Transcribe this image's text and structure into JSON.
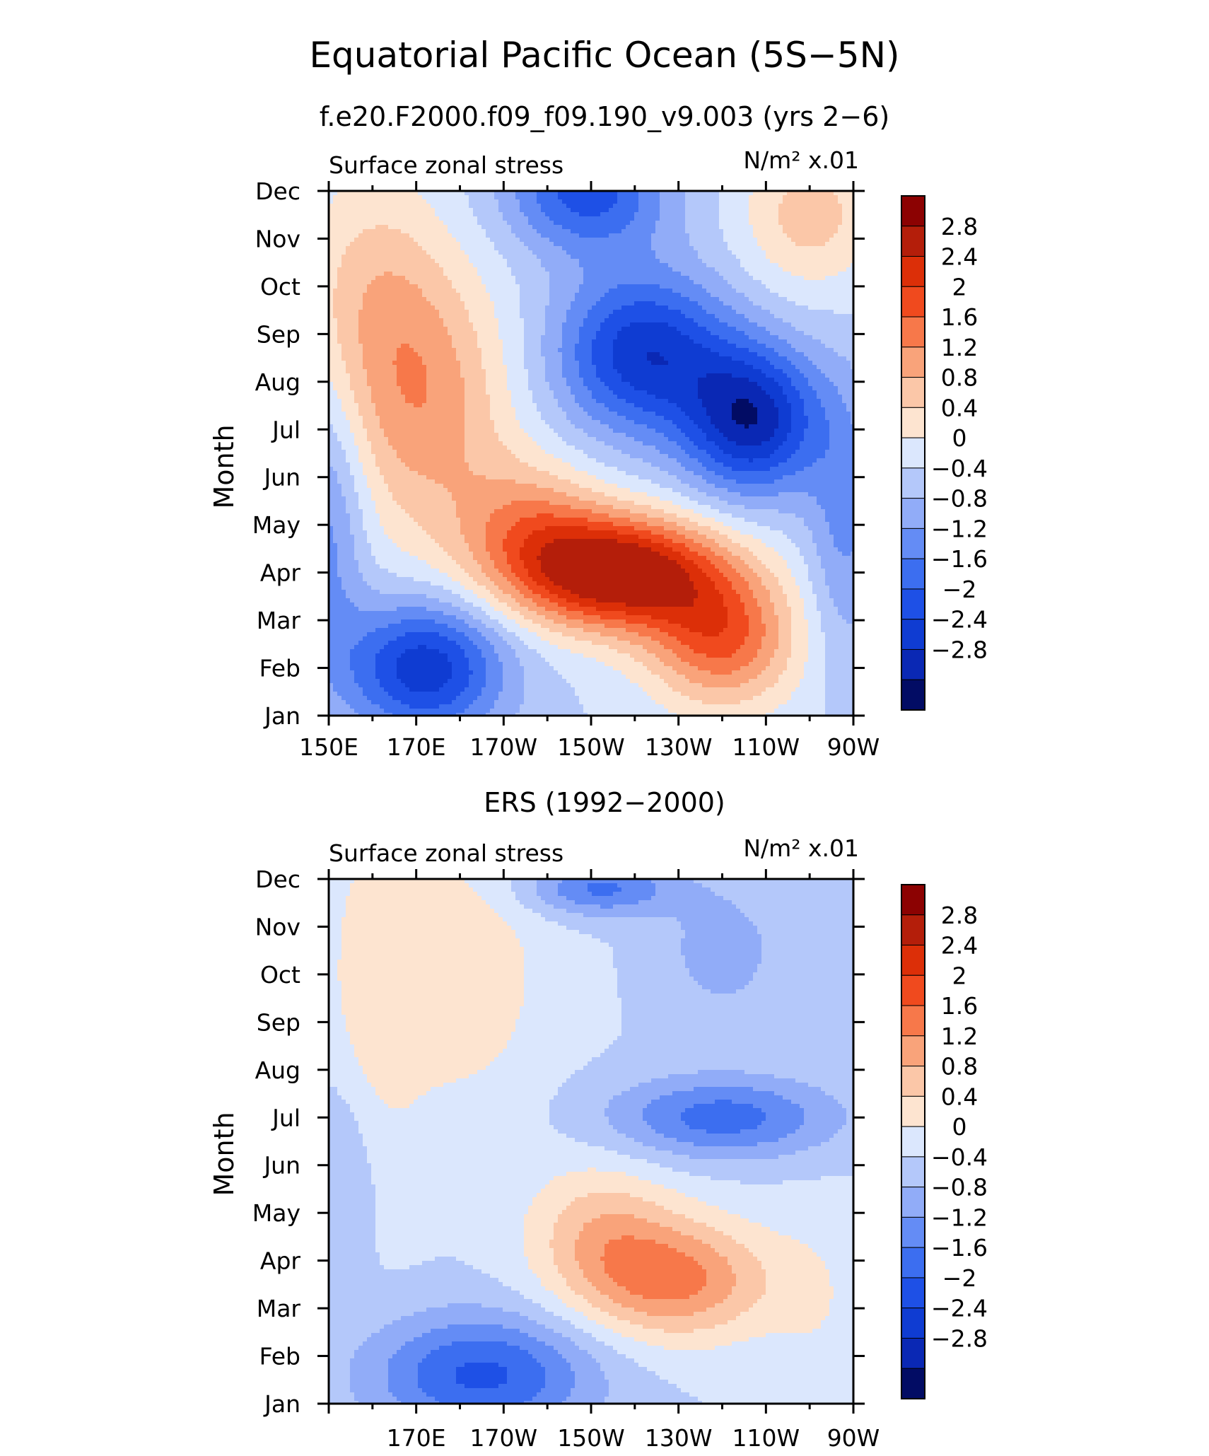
{
  "title": "Equatorial Pacific Ocean (5S−5N)",
  "chart_data": [
    {
      "type": "heatmap",
      "panel_title": "f.e20.F2000.f09_f09.190_v9.003 (yrs 2−6)",
      "left_label": "Surface zonal stress",
      "units_label": "N/m² x.01",
      "ylabel": "Month",
      "xlabel": "",
      "x_tick_labels": [
        "150E",
        "170E",
        "170W",
        "150W",
        "130W",
        "110W",
        "90W"
      ],
      "y_tick_labels": [
        "Jan",
        "Feb",
        "Mar",
        "Apr",
        "May",
        "Jun",
        "Jul",
        "Aug",
        "Sep",
        "Oct",
        "Nov",
        "Dec"
      ],
      "xlim": [
        150,
        270
      ],
      "ylim": [
        1,
        12
      ],
      "contour_levels": [
        -2.8,
        -2.4,
        -2,
        -1.6,
        -1.2,
        -0.8,
        -0.4,
        0,
        0.4,
        0.8,
        1.2,
        1.6,
        2,
        2.4,
        2.8
      ],
      "colorbar_labels": [
        "2.8",
        "2.4",
        "2",
        "1.6",
        "1.2",
        "0.8",
        "0.4",
        "0",
        "−0.4",
        "−0.8",
        "−1.2",
        "−1.6",
        "−2",
        "−2.4",
        "−2.8"
      ],
      "blobs": [
        {
          "lon": 150,
          "month": 5.0,
          "amp": -1.0,
          "sx": 6,
          "sy": 2.0
        },
        {
          "lon": 172,
          "month": 2.0,
          "amp": -2.3,
          "sx": 13,
          "sy": 1.0
        },
        {
          "lon": 216,
          "month": 4.0,
          "amp": 3.4,
          "sx": 17,
          "sy": 0.85
        },
        {
          "lon": 196,
          "month": 5.0,
          "amp": 1.2,
          "sx": 12,
          "sy": 1.0
        },
        {
          "lon": 240,
          "month": 2.6,
          "amp": 2.0,
          "sx": 12,
          "sy": 1.0
        },
        {
          "lon": 172,
          "month": 7.5,
          "amp": 1.4,
          "sx": 14,
          "sy": 2.0
        },
        {
          "lon": 160,
          "month": 10.0,
          "amp": 0.8,
          "sx": 12,
          "sy": 1.8
        },
        {
          "lon": 222,
          "month": 8.6,
          "amp": -2.3,
          "sx": 14,
          "sy": 1.2
        },
        {
          "lon": 247,
          "month": 7.2,
          "amp": -2.6,
          "sx": 11,
          "sy": 1.1
        },
        {
          "lon": 209,
          "month": 12.0,
          "amp": -1.8,
          "sx": 13,
          "sy": 0.9
        },
        {
          "lon": 260,
          "month": 11.5,
          "amp": 1.0,
          "sx": 11,
          "sy": 1.1
        },
        {
          "lon": 268,
          "month": 5.0,
          "amp": -0.9,
          "sx": 6,
          "sy": 2.0
        }
      ]
    },
    {
      "type": "heatmap",
      "panel_title": "ERS (1992−2000)",
      "left_label": "Surface zonal stress",
      "units_label": "N/m² x.01",
      "ylabel": "Month",
      "xlabel": "",
      "x_tick_labels": [
        "170E",
        "170W",
        "150W",
        "130W",
        "110W",
        "90W"
      ],
      "y_tick_labels": [
        "Jan",
        "Feb",
        "Mar",
        "Apr",
        "May",
        "Jun",
        "Jul",
        "Aug",
        "Sep",
        "Oct",
        "Nov",
        "Dec"
      ],
      "xlim": [
        150,
        270
      ],
      "ylim": [
        1,
        12
      ],
      "contour_levels": [
        -2.8,
        -2.4,
        -2,
        -1.6,
        -1.2,
        -0.8,
        -0.4,
        0,
        0.4,
        0.8,
        1.2,
        1.6,
        2,
        2.4,
        2.8
      ],
      "colorbar_labels": [
        "2.8",
        "2.4",
        "2",
        "1.6",
        "1.2",
        "0.8",
        "0.4",
        "0",
        "−0.4",
        "−0.8",
        "−1.2",
        "−1.6",
        "−2",
        "−2.4",
        "−2.8"
      ],
      "blobs": [
        {
          "lon": 185,
          "month": 1.6,
          "amp": -1.7,
          "sx": 18,
          "sy": 0.9
        },
        {
          "lon": 229,
          "month": 3.6,
          "amp": 1.7,
          "sx": 16,
          "sy": 0.9
        },
        {
          "lon": 212,
          "month": 4.7,
          "amp": 0.9,
          "sx": 12,
          "sy": 1.0
        },
        {
          "lon": 240,
          "month": 7.0,
          "amp": -1.4,
          "sx": 18,
          "sy": 0.6
        },
        {
          "lon": 212,
          "month": 11.8,
          "amp": -1.3,
          "sx": 12,
          "sy": 0.4
        },
        {
          "lon": 240,
          "month": 10.5,
          "amp": -0.6,
          "sx": 10,
          "sy": 1.0
        },
        {
          "lon": 180,
          "month": 10.0,
          "amp": 0.7,
          "sx": 14,
          "sy": 2.0
        },
        {
          "lon": 160,
          "month": 9.5,
          "amp": 0.5,
          "sx": 8,
          "sy": 3.0
        },
        {
          "lon": 153,
          "month": 6.0,
          "amp": -0.5,
          "sx": 6,
          "sy": 1.5
        },
        {
          "lon": 262,
          "month": 3.0,
          "amp": 0.3,
          "sx": 8,
          "sy": 1.5
        }
      ]
    }
  ]
}
